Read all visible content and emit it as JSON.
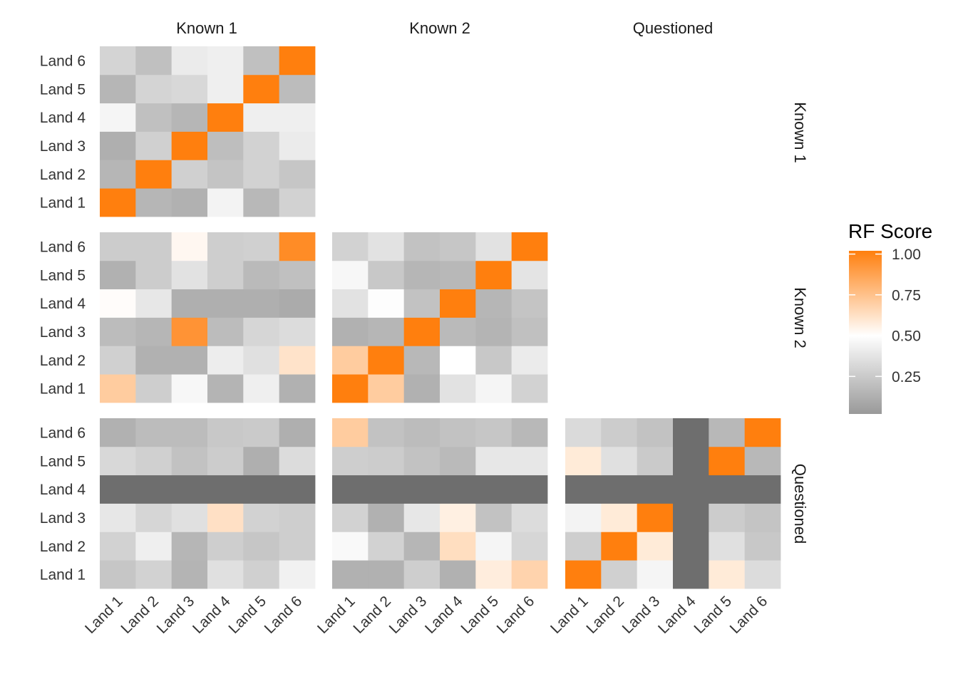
{
  "chart_data": {
    "type": "heatmap",
    "facets_cols": [
      "Known 1",
      "Known 2",
      "Questioned"
    ],
    "facets_rows": [
      "Known 1",
      "Known 2",
      "Questioned"
    ],
    "x_categories": [
      "Land 1",
      "Land 2",
      "Land 3",
      "Land 4",
      "Land 5",
      "Land 6"
    ],
    "y_categories": [
      "Land 1",
      "Land 2",
      "Land 3",
      "Land 4",
      "Land 5",
      "Land 6"
    ],
    "legend": {
      "title": "RF Score",
      "ticks": [
        "0.25",
        "0.50",
        "0.75",
        "1.00"
      ],
      "tick_values": [
        0.25,
        0.5,
        0.75,
        1.0
      ],
      "range": [
        0.02,
        1.02
      ],
      "colors": {
        "low": "#999999",
        "mid": "#ffffff",
        "high": "#ff7f0e",
        "na": "#6e6e6e"
      }
    },
    "panels": [
      {
        "row": "Known 1",
        "col": "Known 1",
        "values": [
          [
            1.0,
            0.14,
            0.12,
            0.44,
            0.15,
            0.28
          ],
          [
            0.14,
            1.0,
            0.27,
            0.21,
            0.28,
            0.22
          ],
          [
            0.11,
            0.27,
            1.0,
            0.18,
            0.28,
            0.4
          ],
          [
            0.45,
            0.19,
            0.14,
            1.0,
            0.42,
            0.42
          ],
          [
            0.14,
            0.29,
            0.31,
            0.42,
            1.0,
            0.17
          ],
          [
            0.29,
            0.19,
            0.4,
            0.42,
            0.19,
            1.0
          ]
        ]
      },
      {
        "row": "Known 2",
        "col": "Known 1",
        "values": [
          [
            0.7,
            0.26,
            0.46,
            0.13,
            0.42,
            0.12
          ],
          [
            0.27,
            0.12,
            0.12,
            0.41,
            0.35,
            0.61
          ],
          [
            0.17,
            0.14,
            0.92,
            0.17,
            0.3,
            0.33
          ],
          [
            0.51,
            0.38,
            0.11,
            0.11,
            0.11,
            0.09
          ],
          [
            0.12,
            0.25,
            0.36,
            0.26,
            0.16,
            0.19
          ],
          [
            0.25,
            0.25,
            0.53,
            0.26,
            0.27,
            0.95
          ]
        ]
      },
      {
        "row": "Known 2",
        "col": "Known 2",
        "values": [
          [
            1.0,
            0.7,
            0.12,
            0.36,
            0.45,
            0.28
          ],
          [
            0.7,
            1.0,
            0.15,
            0.5,
            0.23,
            0.4
          ],
          [
            0.12,
            0.14,
            1.0,
            0.16,
            0.13,
            0.19
          ],
          [
            0.36,
            0.49,
            0.2,
            1.0,
            0.14,
            0.21
          ],
          [
            0.46,
            0.23,
            0.14,
            0.15,
            1.0,
            0.37
          ],
          [
            0.28,
            0.36,
            0.2,
            0.22,
            0.36,
            1.0
          ]
        ]
      },
      {
        "row": "Questioned",
        "col": "Known 1",
        "values": [
          [
            0.22,
            0.28,
            0.13,
            0.35,
            0.27,
            0.43
          ],
          [
            0.28,
            0.42,
            0.14,
            0.26,
            0.22,
            0.26
          ],
          [
            0.38,
            0.3,
            0.35,
            0.62,
            0.28,
            0.26
          ],
          [
            null,
            null,
            null,
            null,
            null,
            null
          ],
          [
            0.31,
            0.27,
            0.2,
            0.25,
            0.11,
            0.33
          ],
          [
            0.12,
            0.17,
            0.17,
            0.23,
            0.24,
            0.11
          ]
        ]
      },
      {
        "row": "Questioned",
        "col": "Known 2",
        "values": [
          [
            0.12,
            0.12,
            0.26,
            0.12,
            0.57,
            0.67
          ],
          [
            0.47,
            0.28,
            0.14,
            0.63,
            0.45,
            0.3
          ],
          [
            0.28,
            0.12,
            0.38,
            0.56,
            0.2,
            0.33
          ],
          [
            null,
            null,
            null,
            null,
            null,
            null
          ],
          [
            0.26,
            0.25,
            0.2,
            0.16,
            0.38,
            0.38
          ],
          [
            0.7,
            0.2,
            0.17,
            0.2,
            0.22,
            0.15
          ]
        ]
      },
      {
        "row": "Questioned",
        "col": "Questioned",
        "values": [
          [
            1.0,
            0.27,
            0.45,
            null,
            0.58,
            0.33
          ],
          [
            0.26,
            1.0,
            0.58,
            null,
            0.35,
            0.23
          ],
          [
            0.44,
            0.58,
            1.0,
            null,
            0.25,
            0.21
          ],
          [
            null,
            null,
            null,
            null,
            null,
            null
          ],
          [
            0.58,
            0.35,
            0.24,
            null,
            1.0,
            0.15
          ],
          [
            0.32,
            0.25,
            0.2,
            null,
            0.15,
            1.0
          ]
        ]
      }
    ]
  }
}
